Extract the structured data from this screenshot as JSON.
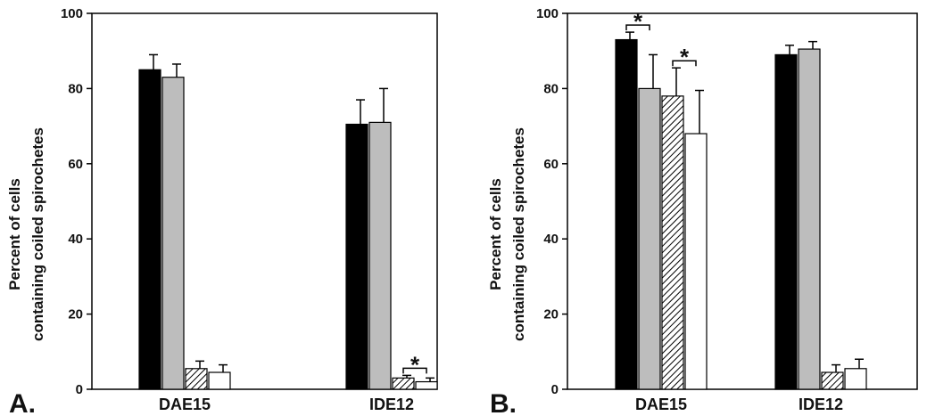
{
  "chart_data": [
    {
      "panel_label": "A.",
      "type": "bar",
      "ylabel": [
        "Percent of cells",
        "containing coiled spirochetes"
      ],
      "ylim": [
        0,
        100
      ],
      "yticks": [
        0,
        20,
        40,
        60,
        80,
        100
      ],
      "categories": [
        "DAE15",
        "IDE12"
      ],
      "series": [
        {
          "fill": "#000000",
          "values": [
            85,
            70.5
          ],
          "errors": [
            4,
            6.5
          ]
        },
        {
          "fill": "#bdbdbd",
          "values": [
            83,
            71
          ],
          "errors": [
            3.5,
            9
          ]
        },
        {
          "fill": "hatched",
          "values": [
            5.5,
            3
          ],
          "errors": [
            2,
            0.7
          ]
        },
        {
          "fill": "#ffffff",
          "values": [
            4.5,
            2
          ],
          "errors": [
            2,
            1
          ]
        }
      ],
      "significance": [
        {
          "category": 1,
          "from": 2,
          "to": 3,
          "label": "*"
        }
      ],
      "grid": false
    },
    {
      "panel_label": "B.",
      "type": "bar",
      "ylabel": [
        "Percent of cells",
        "containing coiled spirochetes"
      ],
      "ylim": [
        0,
        100
      ],
      "yticks": [
        0,
        20,
        40,
        60,
        80,
        100
      ],
      "categories": [
        "DAE15",
        "IDE12"
      ],
      "series": [
        {
          "fill": "#000000",
          "values": [
            93,
            89
          ],
          "errors": [
            2,
            2.5
          ]
        },
        {
          "fill": "#bdbdbd",
          "values": [
            80,
            90.5
          ],
          "errors": [
            9,
            2
          ]
        },
        {
          "fill": "hatched",
          "values": [
            78,
            4.5
          ],
          "errors": [
            7.5,
            2
          ]
        },
        {
          "fill": "#ffffff",
          "values": [
            68,
            5.5
          ],
          "errors": [
            11.5,
            2.5
          ]
        }
      ],
      "significance": [
        {
          "category": 0,
          "from": 0,
          "to": 1,
          "label": "*"
        },
        {
          "category": 0,
          "from": 2,
          "to": 3,
          "label": "*"
        }
      ],
      "grid": false
    }
  ]
}
